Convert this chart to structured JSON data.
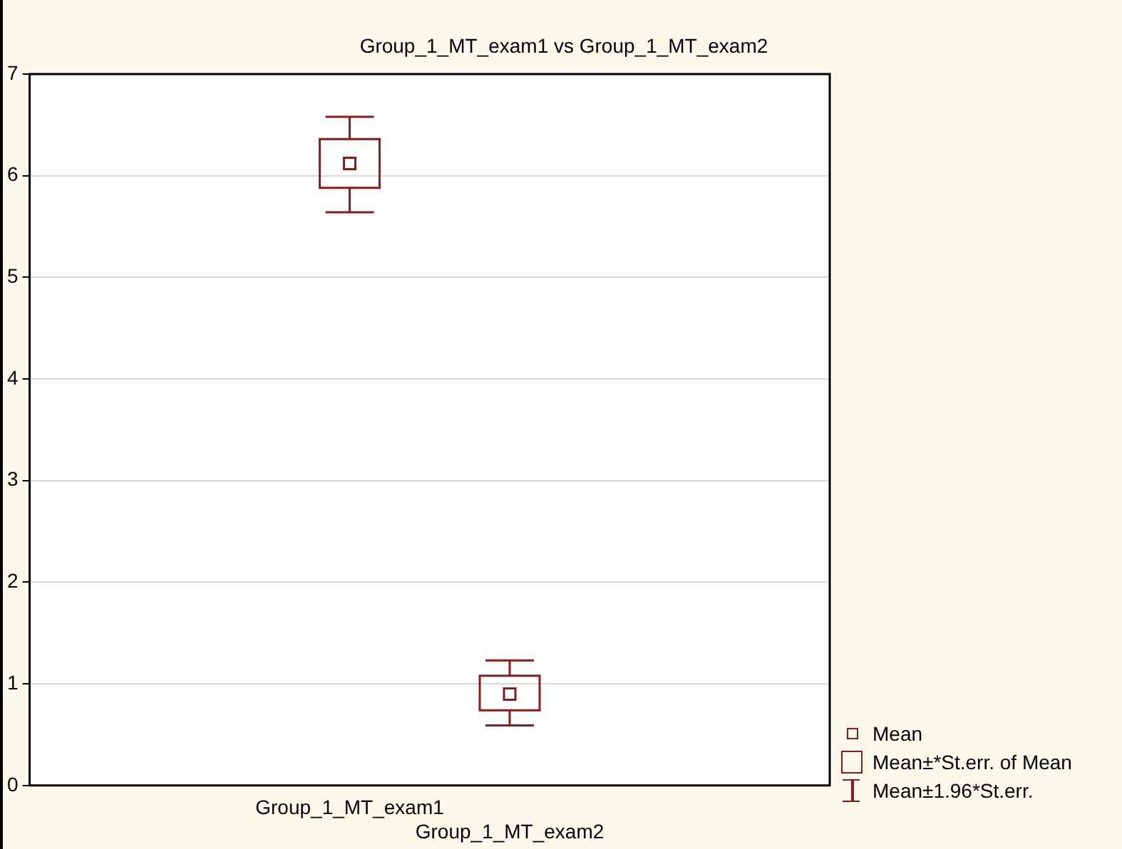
{
  "chart_data": {
    "type": "box",
    "title": "Group_1_MT_exam1 vs Group_1_MT_exam2",
    "categories": [
      "Group_1_MT_exam1",
      "Group_1_MT_exam2"
    ],
    "color": "#8b1a1a",
    "boxes": [
      {
        "low": 5.64,
        "q1": 5.88,
        "median": 6.12,
        "q3": 6.36,
        "high": 6.58
      },
      {
        "low": 0.59,
        "q1": 0.74,
        "median": 0.9,
        "q3": 1.08,
        "high": 1.23
      }
    ],
    "ylim": [
      0,
      7
    ],
    "yticks": [
      0,
      1,
      2,
      3,
      4,
      5,
      6,
      7
    ],
    "grid": "y",
    "annotations": [
      "Mean",
      "Mean±*St.err. of Mean",
      "Mean±1.96*St.err."
    ]
  }
}
